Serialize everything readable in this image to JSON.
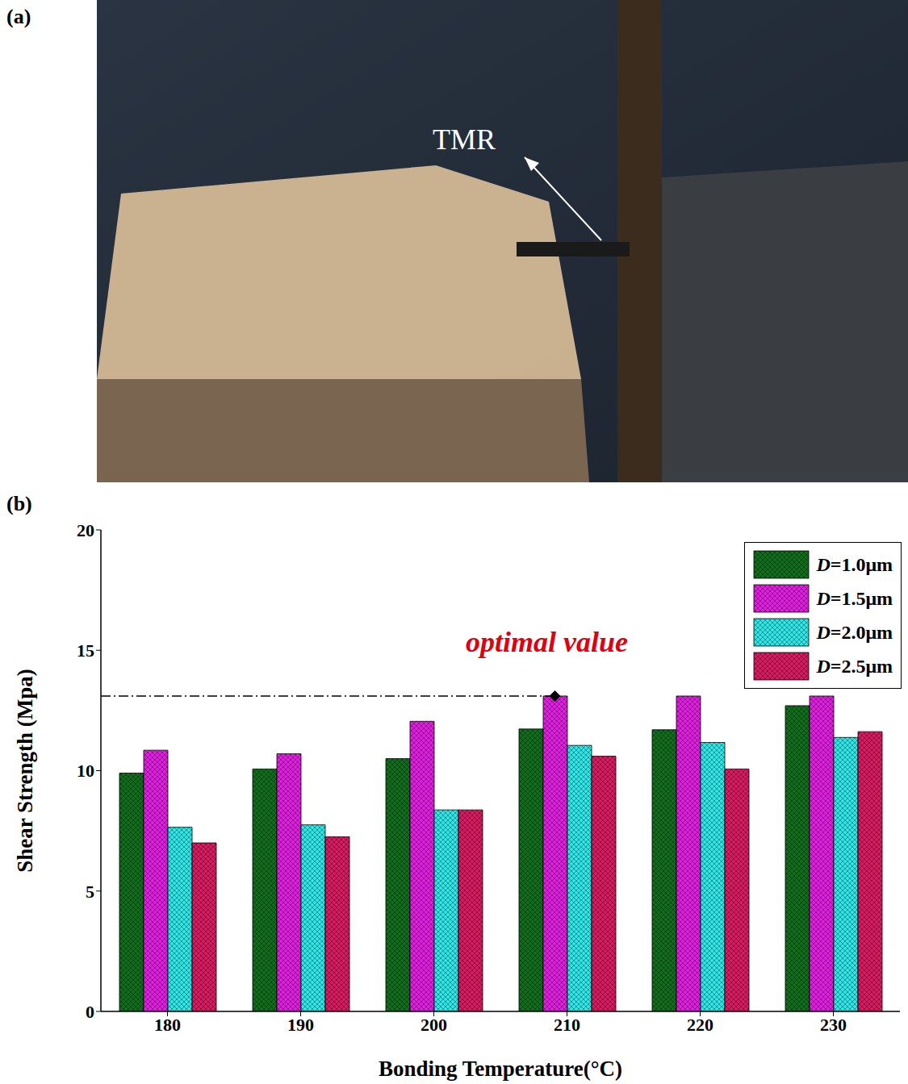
{
  "panel_a": {
    "label": "(a)",
    "annotation": "TMR"
  },
  "chart_data": {
    "type": "bar",
    "panel_label": "(b)",
    "x_label": "Bonding Temperature(°C)",
    "y_label": "Shear Strength (Mpa)",
    "categories": [
      "180",
      "190",
      "200",
      "210",
      "220",
      "230"
    ],
    "series": [
      {
        "name": "D=1.0μm",
        "color": "#0f6e1e",
        "values": [
          9.9,
          10.07,
          10.5,
          11.73,
          11.7,
          12.7
        ]
      },
      {
        "name": "D=1.5μm",
        "color": "#e01ee0",
        "values": [
          10.85,
          10.7,
          12.05,
          13.1,
          13.1,
          13.1
        ]
      },
      {
        "name": "D=2.0μm",
        "color": "#2ee6e6",
        "values": [
          7.65,
          7.75,
          8.37,
          11.05,
          11.17,
          11.38
        ]
      },
      {
        "name": "D=2.5μm",
        "color": "#d81b60",
        "values": [
          7.0,
          7.25,
          8.37,
          10.6,
          10.07,
          11.62
        ]
      }
    ],
    "ylim": [
      0,
      20
    ],
    "yticks": [
      0,
      5,
      10,
      15,
      20
    ],
    "grid": false,
    "legend": "upper right",
    "annotations": [
      {
        "text": "optimal value",
        "x": "210",
        "y": 13.1
      }
    ]
  }
}
